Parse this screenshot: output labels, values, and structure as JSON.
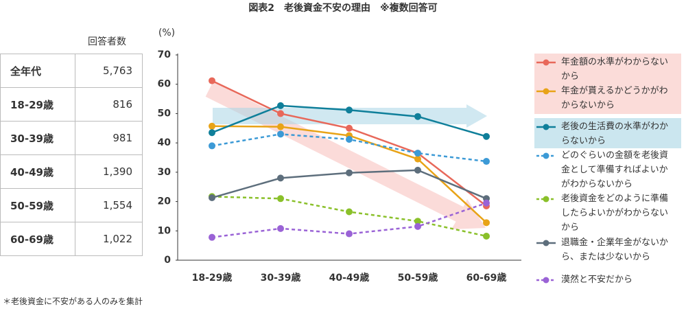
{
  "table": {
    "header": "回答者数",
    "rows": [
      [
        "全年代",
        "5,763"
      ],
      [
        "18-29歳",
        "816"
      ],
      [
        "30-39歳",
        "981"
      ],
      [
        "40-49歳",
        "1,390"
      ],
      [
        "50-59歳",
        "1,554"
      ],
      [
        "60-69歳",
        "1,022"
      ]
    ]
  },
  "chart_data": {
    "type": "line",
    "title": "図表2　老後資金不安の理由　※複数回答可",
    "y_label": "(%)",
    "categories": [
      "18-29歳",
      "30-39歳",
      "40-49歳",
      "50-59歳",
      "60-69歳"
    ],
    "ylim": [
      0,
      70
    ],
    "yticks": [
      0,
      10,
      20,
      30,
      40,
      50,
      60,
      70
    ],
    "grid": false,
    "series": [
      {
        "name": "年金額の水準がわからないから",
        "color": "#e8685a",
        "dashed": false,
        "values": [
          61.2,
          50,
          45,
          36.5,
          18.5
        ]
      },
      {
        "name": "年金が貰えるかどうかがわからないから",
        "color": "#e8a317",
        "dashed": false,
        "values": [
          45.7,
          45.5,
          42.5,
          34.5,
          12.8
        ]
      },
      {
        "name": "老後の生活費の水準がわからないから",
        "color": "#0f7f9a",
        "dashed": false,
        "values": [
          43.5,
          52.7,
          51.2,
          49,
          42.2
        ]
      },
      {
        "name": "どのぐらいの金額を老後資金として準備すればよいかがわからないから",
        "color": "#3c9ad6",
        "dashed": true,
        "values": [
          39,
          43,
          41.2,
          36.5,
          33.7
        ]
      },
      {
        "name": "老後資金をどのように準備したらよいかがわからないから",
        "color": "#8ac02a",
        "dashed": true,
        "values": [
          21.7,
          21,
          16.5,
          13.3,
          8.2
        ]
      },
      {
        "name": "退職金・企業年金がないから、または少ないから",
        "color": "#5d6e7c",
        "dashed": false,
        "values": [
          21.3,
          28,
          29.8,
          30.7,
          21
        ]
      },
      {
        "name": "漠然と不安だから",
        "color": "#9a63d6",
        "dashed": true,
        "values": [
          7.8,
          10.8,
          9,
          11.5,
          19.5
        ]
      }
    ],
    "note": "＊老後資金に不安がある人のみを集計"
  }
}
